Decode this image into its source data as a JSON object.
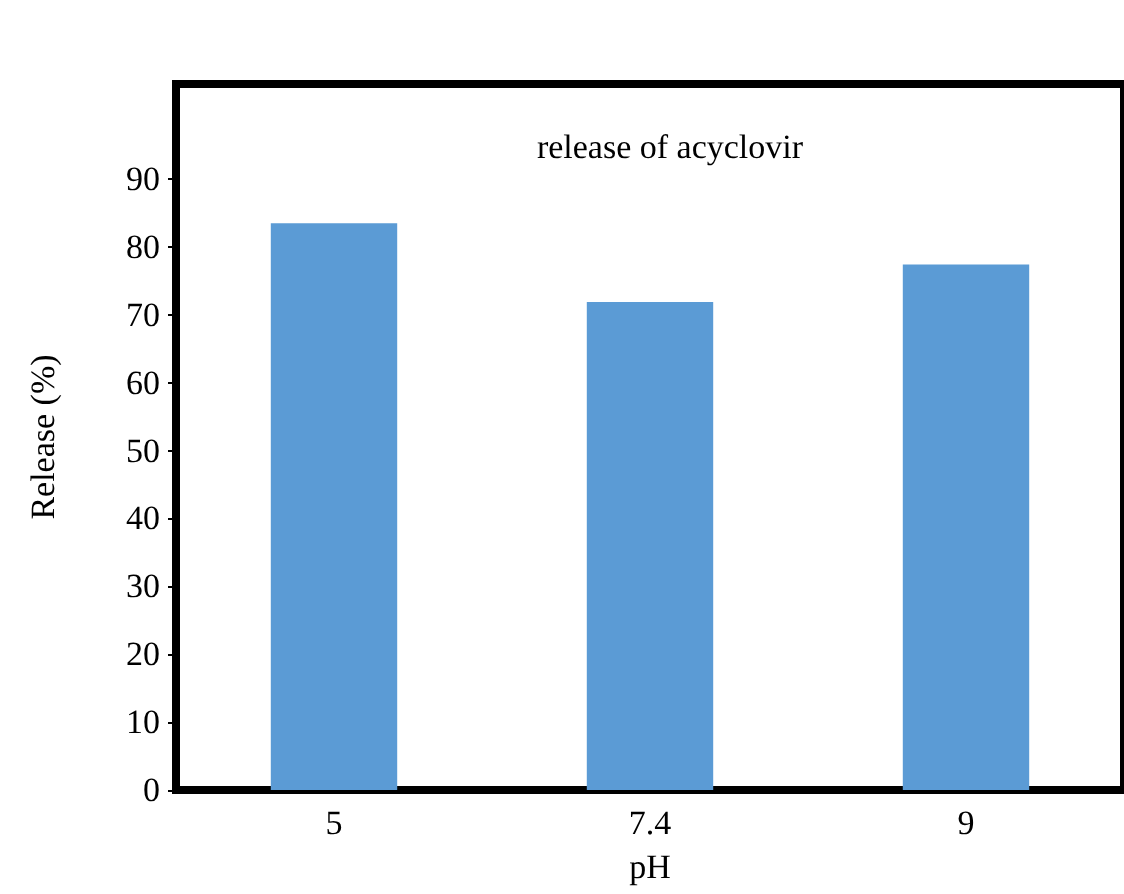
{
  "chart_data": {
    "type": "bar",
    "title": "release of acyclovir",
    "xlabel": "pH",
    "ylabel": "Release (%)",
    "categories": [
      "5",
      "7.4",
      "9"
    ],
    "values": [
      83.5,
      71.9,
      77.4
    ],
    "color": "#5b9bd5",
    "ylim": [
      0,
      104
    ],
    "yticks": [
      0,
      10,
      20,
      30,
      40,
      50,
      60,
      70,
      80,
      90
    ],
    "grid": false
  }
}
